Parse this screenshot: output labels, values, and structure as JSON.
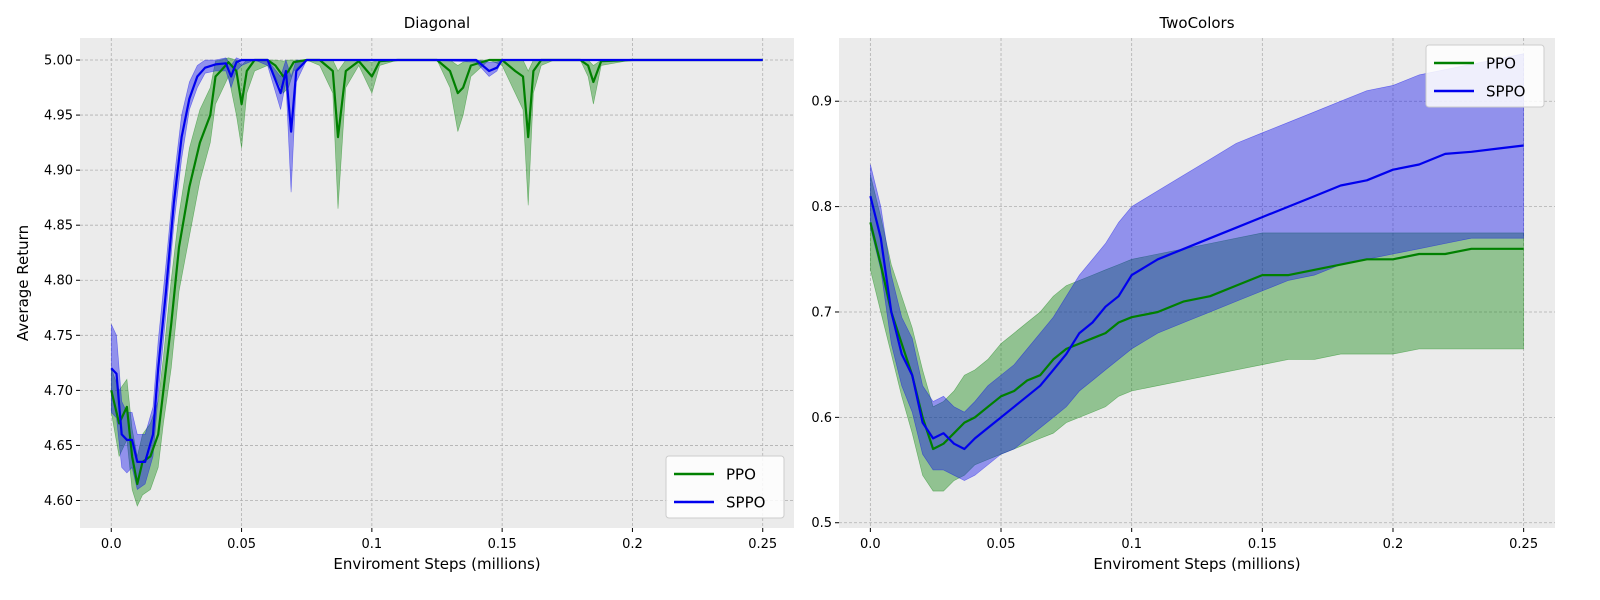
{
  "colors": {
    "PPO": "#008000",
    "SPPO": "#0000ee",
    "plot_background": "#ebebeb",
    "grid": "#b0b0b0"
  },
  "chart_data": [
    {
      "type": "line",
      "title": "Diagonal",
      "xlabel": "Enviroment Steps (millions)",
      "ylabel": "Average Return",
      "xlim": [
        -0.012,
        0.262
      ],
      "ylim": [
        4.575,
        5.02
      ],
      "xticks": [
        0.0,
        0.05,
        0.1,
        0.15,
        0.2,
        0.25
      ],
      "xtick_labels": [
        "0.0",
        "0.05",
        "0.1",
        "0.15",
        "0.2",
        "0.25"
      ],
      "yticks": [
        4.6,
        4.65,
        4.7,
        4.75,
        4.8,
        4.85,
        4.9,
        4.95,
        5.0
      ],
      "ytick_labels": [
        "4.60",
        "4.65",
        "4.70",
        "4.75",
        "4.80",
        "4.85",
        "4.90",
        "4.95",
        "5.00"
      ],
      "grid": true,
      "legend_position": "lower-right",
      "series": [
        {
          "name": "PPO",
          "color_key": "PPO",
          "x": [
            0.0,
            0.003,
            0.006,
            0.008,
            0.01,
            0.012,
            0.015,
            0.018,
            0.02,
            0.023,
            0.026,
            0.03,
            0.034,
            0.038,
            0.04,
            0.042,
            0.045,
            0.048,
            0.05,
            0.052,
            0.055,
            0.06,
            0.063,
            0.066,
            0.068,
            0.07,
            0.075,
            0.08,
            0.085,
            0.087,
            0.09,
            0.095,
            0.1,
            0.103,
            0.11,
            0.125,
            0.13,
            0.133,
            0.135,
            0.138,
            0.145,
            0.15,
            0.155,
            0.158,
            0.16,
            0.162,
            0.165,
            0.17,
            0.18,
            0.183,
            0.185,
            0.188,
            0.2,
            0.22,
            0.25
          ],
          "y": [
            4.7,
            4.67,
            4.685,
            4.64,
            4.615,
            4.635,
            4.64,
            4.66,
            4.7,
            4.76,
            4.83,
            4.885,
            4.925,
            4.95,
            4.985,
            4.99,
            4.998,
            4.99,
            4.96,
            4.99,
            5.0,
            5.0,
            4.995,
            4.985,
            4.99,
            4.998,
            5.0,
            5.0,
            4.99,
            4.93,
            4.99,
            4.999,
            4.985,
            4.999,
            5.0,
            5.0,
            4.99,
            4.97,
            4.975,
            4.995,
            5.0,
            5.0,
            4.99,
            4.985,
            4.93,
            4.99,
            5.0,
            5.0,
            5.0,
            4.995,
            4.98,
            4.999,
            5.0,
            5.0,
            5.0
          ],
          "lower": [
            4.68,
            4.64,
            4.655,
            4.61,
            4.595,
            4.605,
            4.61,
            4.63,
            4.67,
            4.72,
            4.79,
            4.84,
            4.89,
            4.925,
            4.96,
            4.97,
            4.985,
            4.95,
            4.92,
            4.97,
            4.99,
            4.995,
            4.985,
            4.97,
            4.975,
            4.99,
            5.0,
            4.995,
            4.97,
            4.865,
            4.975,
            4.995,
            4.97,
            4.995,
            5.0,
            5.0,
            4.975,
            4.935,
            4.95,
            4.985,
            5.0,
            4.995,
            4.97,
            4.955,
            4.868,
            4.97,
            4.995,
            5.0,
            5.0,
            4.985,
            4.96,
            4.995,
            5.0,
            5.0,
            5.0
          ],
          "upper": [
            4.72,
            4.7,
            4.71,
            4.665,
            4.64,
            4.66,
            4.67,
            4.69,
            4.73,
            4.8,
            4.86,
            4.92,
            4.955,
            4.975,
            4.999,
            5.0,
            5.002,
            5.0,
            4.995,
            5.0,
            5.0,
            5.0,
            5.0,
            4.999,
            5.0,
            5.0,
            5.0,
            5.0,
            5.0,
            4.99,
            5.0,
            5.0,
            4.998,
            5.0,
            5.0,
            5.0,
            5.0,
            4.995,
            4.998,
            5.0,
            5.0,
            5.0,
            5.0,
            5.0,
            4.99,
            5.0,
            5.0,
            5.0,
            5.0,
            5.0,
            4.995,
            5.0,
            5.0,
            5.0,
            5.0
          ]
        },
        {
          "name": "SPPO",
          "color_key": "SPPO",
          "x": [
            0.0,
            0.002,
            0.004,
            0.006,
            0.008,
            0.01,
            0.013,
            0.016,
            0.018,
            0.021,
            0.024,
            0.027,
            0.03,
            0.033,
            0.036,
            0.04,
            0.044,
            0.046,
            0.048,
            0.05,
            0.055,
            0.06,
            0.065,
            0.067,
            0.069,
            0.071,
            0.075,
            0.08,
            0.09,
            0.1,
            0.11,
            0.12,
            0.14,
            0.145,
            0.148,
            0.15,
            0.155,
            0.17,
            0.2,
            0.25
          ],
          "y": [
            4.72,
            4.715,
            4.66,
            4.655,
            4.655,
            4.635,
            4.635,
            4.66,
            4.72,
            4.79,
            4.87,
            4.93,
            4.965,
            4.985,
            4.993,
            4.996,
            4.997,
            4.985,
            4.998,
            5.0,
            5.0,
            5.0,
            4.97,
            4.99,
            4.935,
            4.99,
            5.0,
            5.0,
            5.0,
            5.0,
            5.0,
            5.0,
            5.0,
            4.99,
            4.993,
            5.0,
            5.0,
            5.0,
            5.0,
            5.0
          ],
          "lower": [
            4.68,
            4.675,
            4.63,
            4.625,
            4.63,
            4.61,
            4.615,
            4.64,
            4.695,
            4.77,
            4.85,
            4.91,
            4.955,
            4.975,
            4.988,
            4.99,
            4.99,
            4.975,
            4.99,
            4.995,
            5.0,
            4.995,
            4.955,
            4.98,
            4.88,
            4.98,
            5.0,
            5.0,
            5.0,
            5.0,
            5.0,
            5.0,
            4.998,
            4.985,
            4.99,
            5.0,
            5.0,
            5.0,
            5.0,
            5.0
          ],
          "upper": [
            4.76,
            4.75,
            4.69,
            4.68,
            4.68,
            4.66,
            4.66,
            4.685,
            4.745,
            4.815,
            4.89,
            4.95,
            4.98,
            4.995,
            5.0,
            5.0,
            5.002,
            4.995,
            5.002,
            5.0,
            5.0,
            5.0,
            4.985,
            5.0,
            4.985,
            5.0,
            5.0,
            5.0,
            5.0,
            5.0,
            5.0,
            5.0,
            5.0,
            4.998,
            4.998,
            5.0,
            5.0,
            5.0,
            5.0,
            5.0
          ]
        }
      ]
    },
    {
      "type": "line",
      "title": "TwoColors",
      "xlabel": "Enviroment Steps (millions)",
      "ylabel": "",
      "xlim": [
        -0.012,
        0.262
      ],
      "ylim": [
        0.495,
        0.96
      ],
      "xticks": [
        0.0,
        0.05,
        0.1,
        0.15,
        0.2,
        0.25
      ],
      "xtick_labels": [
        "0.0",
        "0.05",
        "0.1",
        "0.15",
        "0.2",
        "0.25"
      ],
      "yticks": [
        0.5,
        0.6,
        0.7,
        0.8,
        0.9
      ],
      "ytick_labels": [
        "0.5",
        "0.6",
        "0.7",
        "0.8",
        "0.9"
      ],
      "grid": true,
      "legend_position": "upper-right",
      "series": [
        {
          "name": "PPO",
          "color_key": "PPO",
          "x": [
            0.0,
            0.004,
            0.008,
            0.012,
            0.016,
            0.02,
            0.024,
            0.028,
            0.032,
            0.036,
            0.04,
            0.045,
            0.05,
            0.055,
            0.06,
            0.065,
            0.07,
            0.075,
            0.08,
            0.085,
            0.09,
            0.095,
            0.1,
            0.11,
            0.12,
            0.13,
            0.14,
            0.15,
            0.16,
            0.17,
            0.18,
            0.19,
            0.2,
            0.21,
            0.22,
            0.23,
            0.24,
            0.25
          ],
          "y": [
            0.785,
            0.745,
            0.7,
            0.67,
            0.64,
            0.6,
            0.57,
            0.575,
            0.585,
            0.595,
            0.6,
            0.61,
            0.62,
            0.625,
            0.635,
            0.64,
            0.655,
            0.665,
            0.67,
            0.675,
            0.68,
            0.69,
            0.695,
            0.7,
            0.71,
            0.715,
            0.725,
            0.735,
            0.735,
            0.74,
            0.745,
            0.75,
            0.75,
            0.755,
            0.755,
            0.76,
            0.76,
            0.76
          ],
          "lower": [
            0.74,
            0.7,
            0.66,
            0.62,
            0.585,
            0.545,
            0.53,
            0.53,
            0.54,
            0.545,
            0.555,
            0.56,
            0.565,
            0.57,
            0.575,
            0.58,
            0.585,
            0.595,
            0.6,
            0.605,
            0.61,
            0.62,
            0.625,
            0.63,
            0.635,
            0.64,
            0.645,
            0.65,
            0.655,
            0.655,
            0.66,
            0.66,
            0.66,
            0.665,
            0.665,
            0.665,
            0.665,
            0.665
          ],
          "upper": [
            0.83,
            0.79,
            0.745,
            0.715,
            0.685,
            0.645,
            0.61,
            0.615,
            0.625,
            0.64,
            0.645,
            0.655,
            0.67,
            0.68,
            0.69,
            0.7,
            0.715,
            0.725,
            0.73,
            0.735,
            0.74,
            0.745,
            0.75,
            0.755,
            0.76,
            0.765,
            0.77,
            0.775,
            0.775,
            0.775,
            0.775,
            0.775,
            0.775,
            0.775,
            0.775,
            0.775,
            0.775,
            0.775
          ]
        },
        {
          "name": "SPPO",
          "color_key": "SPPO",
          "x": [
            0.0,
            0.004,
            0.008,
            0.012,
            0.016,
            0.02,
            0.024,
            0.028,
            0.032,
            0.036,
            0.04,
            0.045,
            0.05,
            0.055,
            0.06,
            0.065,
            0.07,
            0.075,
            0.08,
            0.085,
            0.09,
            0.095,
            0.1,
            0.11,
            0.12,
            0.13,
            0.14,
            0.15,
            0.16,
            0.17,
            0.18,
            0.19,
            0.2,
            0.21,
            0.22,
            0.23,
            0.24,
            0.25
          ],
          "y": [
            0.81,
            0.77,
            0.7,
            0.66,
            0.64,
            0.595,
            0.58,
            0.585,
            0.575,
            0.57,
            0.58,
            0.59,
            0.6,
            0.61,
            0.62,
            0.63,
            0.645,
            0.66,
            0.68,
            0.69,
            0.705,
            0.715,
            0.735,
            0.75,
            0.76,
            0.77,
            0.78,
            0.79,
            0.8,
            0.81,
            0.82,
            0.825,
            0.835,
            0.84,
            0.85,
            0.852,
            0.855,
            0.858
          ],
          "lower": [
            0.78,
            0.74,
            0.67,
            0.63,
            0.605,
            0.565,
            0.55,
            0.55,
            0.545,
            0.54,
            0.545,
            0.555,
            0.565,
            0.57,
            0.58,
            0.59,
            0.6,
            0.61,
            0.625,
            0.635,
            0.645,
            0.655,
            0.665,
            0.68,
            0.69,
            0.7,
            0.71,
            0.72,
            0.73,
            0.735,
            0.745,
            0.75,
            0.755,
            0.76,
            0.765,
            0.77,
            0.77,
            0.77
          ],
          "upper": [
            0.84,
            0.8,
            0.735,
            0.695,
            0.675,
            0.63,
            0.615,
            0.62,
            0.61,
            0.605,
            0.615,
            0.63,
            0.64,
            0.65,
            0.665,
            0.68,
            0.695,
            0.715,
            0.735,
            0.75,
            0.765,
            0.785,
            0.8,
            0.815,
            0.83,
            0.845,
            0.86,
            0.87,
            0.88,
            0.89,
            0.9,
            0.91,
            0.915,
            0.925,
            0.93,
            0.935,
            0.94,
            0.945
          ]
        }
      ]
    }
  ]
}
